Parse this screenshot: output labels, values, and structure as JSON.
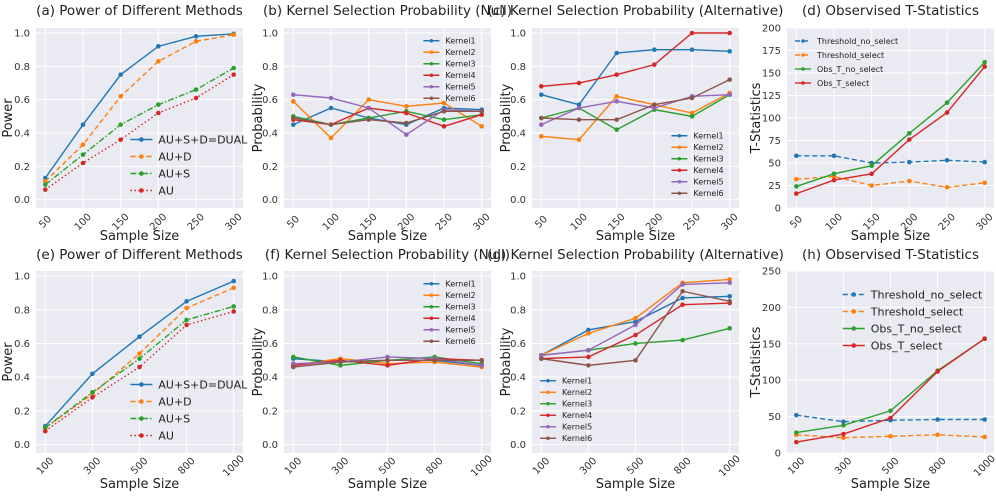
{
  "colors": {
    "blue": "#1f77b4",
    "orange": "#ff7f0e",
    "green": "#2ca02c",
    "red": "#d62728",
    "purple": "#9467bd",
    "brown": "#8c564b",
    "panel_bg": "#eaeaf2",
    "grid": "#ffffff"
  },
  "chart_data": [
    {
      "id": "a",
      "type": "line",
      "title": "(a) Power of Different Methods",
      "xlabel": "Sample Size",
      "ylabel": "Power",
      "categories": [
        "50",
        "100",
        "150",
        "200",
        "250",
        "300"
      ],
      "ylim": [
        -0.05,
        1.03
      ],
      "yticks": [
        "0.0",
        "0.2",
        "0.4",
        "0.6",
        "0.8",
        "1.0"
      ],
      "legend": "lower-right",
      "series": [
        {
          "name": "AU+S+D=DUAL",
          "color": "blue",
          "style": "solid",
          "values": [
            0.13,
            0.45,
            0.75,
            0.92,
            0.98,
            0.995
          ]
        },
        {
          "name": "AU+D",
          "color": "orange",
          "style": "dashed",
          "values": [
            0.11,
            0.33,
            0.62,
            0.83,
            0.95,
            0.99
          ]
        },
        {
          "name": "AU+S",
          "color": "green",
          "style": "dashdot",
          "values": [
            0.09,
            0.27,
            0.45,
            0.57,
            0.66,
            0.79
          ]
        },
        {
          "name": "AU",
          "color": "red",
          "style": "dotted",
          "values": [
            0.06,
            0.22,
            0.36,
            0.52,
            0.61,
            0.75
          ]
        }
      ]
    },
    {
      "id": "b",
      "type": "line",
      "title": "(b) Kernel Selection Probability (Null)",
      "xlabel": "Sample Size",
      "ylabel": "Probability",
      "categories": [
        "50",
        "100",
        "150",
        "200",
        "250",
        "300"
      ],
      "ylim": [
        -0.05,
        1.03
      ],
      "yticks": [
        "0.0",
        "0.2",
        "0.4",
        "0.6",
        "0.8",
        "1.0"
      ],
      "legend": "top-right",
      "series": [
        {
          "name": "Kernel1",
          "color": "blue",
          "style": "solid",
          "values": [
            0.45,
            0.55,
            0.49,
            0.45,
            0.55,
            0.54
          ]
        },
        {
          "name": "Kernel2",
          "color": "orange",
          "style": "solid",
          "values": [
            0.59,
            0.37,
            0.6,
            0.56,
            0.58,
            0.44
          ]
        },
        {
          "name": "Kernel3",
          "color": "green",
          "style": "solid",
          "values": [
            0.5,
            0.45,
            0.49,
            0.53,
            0.48,
            0.51
          ]
        },
        {
          "name": "Kernel4",
          "color": "red",
          "style": "solid",
          "values": [
            0.48,
            0.45,
            0.55,
            0.52,
            0.44,
            0.51
          ]
        },
        {
          "name": "Kernel5",
          "color": "purple",
          "style": "solid",
          "values": [
            0.63,
            0.61,
            0.55,
            0.39,
            0.54,
            0.53
          ]
        },
        {
          "name": "Kernel6",
          "color": "brown",
          "style": "solid",
          "values": [
            0.49,
            0.45,
            0.48,
            0.46,
            0.53,
            0.53
          ]
        }
      ]
    },
    {
      "id": "c",
      "type": "line",
      "title": "(c) Kernel Selection Probability (Alternative)",
      "xlabel": "Sample Size",
      "ylabel": "Probability",
      "categories": [
        "50",
        "100",
        "150",
        "200",
        "250",
        "300"
      ],
      "ylim": [
        -0.05,
        1.03
      ],
      "yticks": [
        "0.0",
        "0.2",
        "0.4",
        "0.6",
        "0.8",
        "1.0"
      ],
      "legend": "lower-right",
      "series": [
        {
          "name": "Kernel1",
          "color": "blue",
          "style": "solid",
          "values": [
            0.63,
            0.57,
            0.88,
            0.9,
            0.9,
            0.89
          ]
        },
        {
          "name": "Kernel2",
          "color": "orange",
          "style": "solid",
          "values": [
            0.38,
            0.36,
            0.62,
            0.57,
            0.52,
            0.64
          ]
        },
        {
          "name": "Kernel3",
          "color": "green",
          "style": "solid",
          "values": [
            0.49,
            0.55,
            0.42,
            0.54,
            0.5,
            0.63
          ]
        },
        {
          "name": "Kernel4",
          "color": "red",
          "style": "solid",
          "values": [
            0.68,
            0.7,
            0.75,
            0.81,
            1.0,
            1.0
          ]
        },
        {
          "name": "Kernel5",
          "color": "purple",
          "style": "solid",
          "values": [
            0.45,
            0.55,
            0.59,
            0.55,
            0.62,
            0.63
          ]
        },
        {
          "name": "Kernel6",
          "color": "brown",
          "style": "solid",
          "values": [
            0.49,
            0.48,
            0.48,
            0.57,
            0.61,
            0.72
          ]
        }
      ]
    },
    {
      "id": "d",
      "type": "line",
      "title": "(d) Observised T-Statistics",
      "xlabel": "Sample Size",
      "ylabel": "T-Statistics",
      "categories": [
        "50",
        "100",
        "150",
        "200",
        "250",
        "300"
      ],
      "ylim": [
        0,
        200
      ],
      "yticks": [
        "0",
        "25",
        "50",
        "75",
        "100",
        "125",
        "150",
        "175",
        "200"
      ],
      "legend": "top-left",
      "series": [
        {
          "name": "Threshold_no_select",
          "color": "blue",
          "style": "dashed",
          "values": [
            58,
            58,
            50,
            51,
            53,
            51
          ]
        },
        {
          "name": "Threshold_select",
          "color": "orange",
          "style": "dashed",
          "values": [
            32,
            35,
            25,
            30,
            23,
            28
          ]
        },
        {
          "name": "Obs_T_no_select",
          "color": "green",
          "style": "solid",
          "values": [
            24,
            38,
            47,
            83,
            117,
            162
          ]
        },
        {
          "name": "Obs_T_select",
          "color": "red",
          "style": "solid",
          "values": [
            16,
            31,
            38,
            76,
            106,
            157
          ]
        }
      ]
    },
    {
      "id": "e",
      "type": "line",
      "title": "(e) Power of Different Methods",
      "xlabel": "Sample Size",
      "ylabel": "Power",
      "categories": [
        "100",
        "300",
        "500",
        "800",
        "1000"
      ],
      "ylim": [
        -0.05,
        1.03
      ],
      "yticks": [
        "0.0",
        "0.2",
        "0.4",
        "0.6",
        "0.8",
        "1.0"
      ],
      "legend": "lower-right",
      "series": [
        {
          "name": "AU+S+D=DUAL",
          "color": "blue",
          "style": "solid",
          "values": [
            0.11,
            0.42,
            0.64,
            0.85,
            0.97
          ]
        },
        {
          "name": "AU+D",
          "color": "orange",
          "style": "dashed",
          "values": [
            0.1,
            0.3,
            0.54,
            0.81,
            0.93
          ]
        },
        {
          "name": "AU+S",
          "color": "green",
          "style": "dashdot",
          "values": [
            0.1,
            0.31,
            0.51,
            0.74,
            0.82
          ]
        },
        {
          "name": "AU",
          "color": "red",
          "style": "dotted",
          "values": [
            0.08,
            0.28,
            0.46,
            0.71,
            0.79
          ]
        }
      ]
    },
    {
      "id": "f",
      "type": "line",
      "title": "(f) Kernel Selection Probability (Null)",
      "xlabel": "Sample Size",
      "ylabel": "Probability",
      "categories": [
        "100",
        "300",
        "500",
        "800",
        "1000"
      ],
      "ylim": [
        -0.05,
        1.03
      ],
      "yticks": [
        "0.0",
        "0.2",
        "0.4",
        "0.6",
        "0.8",
        "1.0"
      ],
      "legend": "top-right",
      "series": [
        {
          "name": "Kernel1",
          "color": "blue",
          "style": "solid",
          "values": [
            0.51,
            0.49,
            0.5,
            0.5,
            0.47
          ]
        },
        {
          "name": "Kernel2",
          "color": "orange",
          "style": "solid",
          "values": [
            0.47,
            0.51,
            0.48,
            0.49,
            0.46
          ]
        },
        {
          "name": "Kernel3",
          "color": "green",
          "style": "solid",
          "values": [
            0.52,
            0.47,
            0.5,
            0.52,
            0.48
          ]
        },
        {
          "name": "Kernel4",
          "color": "red",
          "style": "solid",
          "values": [
            0.47,
            0.5,
            0.47,
            0.51,
            0.5
          ]
        },
        {
          "name": "Kernel5",
          "color": "purple",
          "style": "solid",
          "values": [
            0.48,
            0.49,
            0.52,
            0.51,
            0.47
          ]
        },
        {
          "name": "Kernel6",
          "color": "brown",
          "style": "solid",
          "values": [
            0.46,
            0.49,
            0.5,
            0.5,
            0.5
          ]
        }
      ]
    },
    {
      "id": "g",
      "type": "line",
      "title": "(g) Kernel Selection Probability (Alternative)",
      "xlabel": "Sample Size",
      "ylabel": "Probability",
      "categories": [
        "100",
        "300",
        "500",
        "800",
        "1000"
      ],
      "ylim": [
        -0.05,
        1.03
      ],
      "yticks": [
        "0.0",
        "0.2",
        "0.4",
        "0.6",
        "0.8",
        "1.0"
      ],
      "legend": "lower-left",
      "series": [
        {
          "name": "Kernel1",
          "color": "blue",
          "style": "solid",
          "values": [
            0.53,
            0.68,
            0.73,
            0.87,
            0.88
          ]
        },
        {
          "name": "Kernel2",
          "color": "orange",
          "style": "solid",
          "values": [
            0.53,
            0.66,
            0.75,
            0.96,
            0.98
          ]
        },
        {
          "name": "Kernel3",
          "color": "green",
          "style": "solid",
          "values": [
            0.53,
            0.56,
            0.6,
            0.62,
            0.69
          ]
        },
        {
          "name": "Kernel4",
          "color": "red",
          "style": "solid",
          "values": [
            0.51,
            0.52,
            0.65,
            0.83,
            0.84
          ]
        },
        {
          "name": "Kernel5",
          "color": "purple",
          "style": "solid",
          "values": [
            0.53,
            0.56,
            0.71,
            0.95,
            0.96
          ]
        },
        {
          "name": "Kernel6",
          "color": "brown",
          "style": "solid",
          "values": [
            0.51,
            0.47,
            0.5,
            0.91,
            0.85
          ]
        }
      ]
    },
    {
      "id": "h",
      "type": "line",
      "title": "(h) Observised T-Statistics",
      "xlabel": "Sample Size",
      "ylabel": "T-Statistics",
      "categories": [
        "100",
        "300",
        "500",
        "800",
        "1000"
      ],
      "ylim": [
        0,
        250
      ],
      "yticks": [
        "0",
        "50",
        "100",
        "150",
        "200",
        "250"
      ],
      "legend": "top-center",
      "series": [
        {
          "name": "Threshold_no_select",
          "color": "blue",
          "style": "dashed",
          "values": [
            52,
            43,
            45,
            46,
            46
          ]
        },
        {
          "name": "Threshold_select",
          "color": "orange",
          "style": "dashed",
          "values": [
            25,
            21,
            23,
            25,
            22
          ]
        },
        {
          "name": "Obs_T_no_select",
          "color": "green",
          "style": "solid",
          "values": [
            28,
            38,
            58,
            113,
            157
          ]
        },
        {
          "name": "Obs_T_select",
          "color": "red",
          "style": "solid",
          "values": [
            15,
            26,
            48,
            112,
            157
          ]
        }
      ]
    }
  ]
}
